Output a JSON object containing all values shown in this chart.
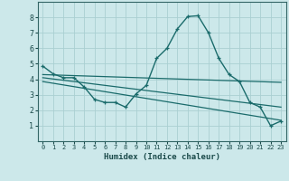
{
  "xlabel": "Humidex (Indice chaleur)",
  "bg_color": "#cce8ea",
  "grid_color": "#aacfd2",
  "line_color": "#1a6b6b",
  "xlim": [
    -0.5,
    23.5
  ],
  "ylim": [
    0,
    9
  ],
  "xticks": [
    0,
    1,
    2,
    3,
    4,
    5,
    6,
    7,
    8,
    9,
    10,
    11,
    12,
    13,
    14,
    15,
    16,
    17,
    18,
    19,
    20,
    21,
    22,
    23
  ],
  "yticks": [
    1,
    2,
    3,
    4,
    5,
    6,
    7,
    8
  ],
  "line1_x": [
    0,
    1,
    2,
    3,
    4,
    5,
    6,
    7,
    8,
    9,
    10,
    11,
    12,
    13,
    14,
    15,
    16,
    17,
    18,
    19,
    20,
    21,
    22,
    23
  ],
  "line1_y": [
    4.85,
    4.35,
    4.1,
    4.1,
    3.5,
    2.7,
    2.5,
    2.5,
    2.2,
    3.05,
    3.6,
    5.35,
    6.0,
    7.25,
    8.05,
    8.1,
    7.0,
    5.35,
    4.3,
    3.85,
    2.5,
    2.2,
    1.0,
    1.3
  ],
  "line2_x": [
    0,
    23
  ],
  "line2_y": [
    4.3,
    3.8
  ],
  "line3_x": [
    0,
    23
  ],
  "line3_y": [
    4.1,
    2.2
  ],
  "line4_x": [
    0,
    23
  ],
  "line4_y": [
    3.85,
    1.35
  ]
}
